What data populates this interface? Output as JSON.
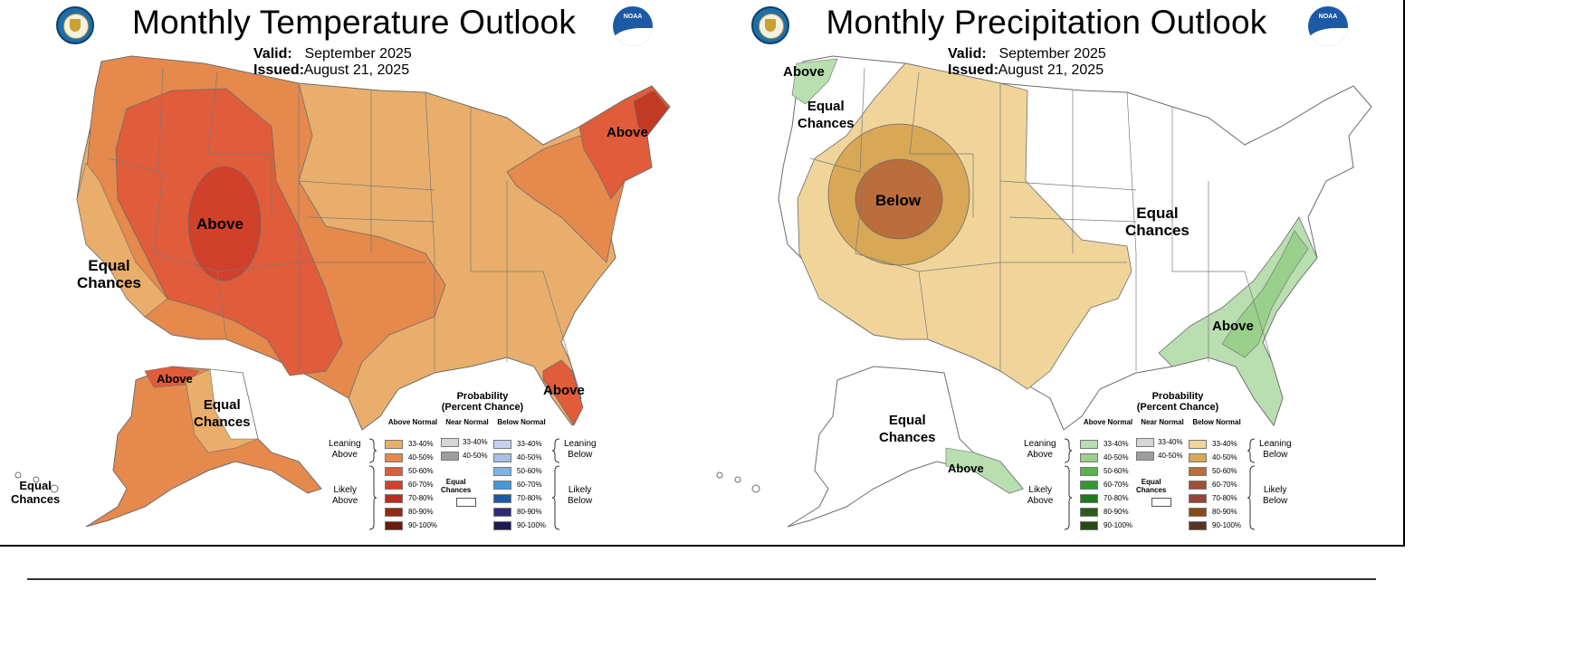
{
  "temperature": {
    "title": "Monthly Temperature Outlook",
    "valid_label": "Valid:",
    "valid_value": "September 2025",
    "issued_label": "Issued:",
    "issued_value": "August 21, 2025",
    "map_labels": {
      "above_west": "Above",
      "above_northeast": "Above",
      "above_florida": "Above",
      "above_alaska": "Above",
      "equal_chances_ca_1": "Equal",
      "equal_chances_ca_2": "Chances",
      "equal_chances_ak_1": "Equal",
      "equal_chances_ak_2": "Chances",
      "equal_chances_hi_1": "Equal",
      "equal_chances_hi_2": "Chances"
    }
  },
  "precipitation": {
    "title": "Monthly Precipitation Outlook",
    "valid_label": "Valid:",
    "valid_value": "September 2025",
    "issued_label": "Issued:",
    "issued_value": "August 21, 2025",
    "map_labels": {
      "above_pnw": "Above",
      "equal_chances_nw_1": "Equal",
      "equal_chances_nw_2": "Chances",
      "below_center": "Below",
      "equal_chances_east_1": "Equal",
      "equal_chances_east_2": "Chances",
      "above_southeast": "Above",
      "equal_chances_ak_1": "Equal",
      "equal_chances_ak_2": "Chances",
      "above_ak_panhandle": "Above"
    }
  },
  "legend": {
    "title_1": "Probability",
    "title_2": "(Percent Chance)",
    "col_above": "Above Normal",
    "col_near": "Near Normal",
    "col_below": "Below Normal",
    "leaning_above_1": "Leaning",
    "leaning_above_2": "Above",
    "likely_above_1": "Likely",
    "likely_above_2": "Above",
    "leaning_below_1": "Leaning",
    "leaning_below_2": "Below",
    "likely_below_1": "Likely",
    "likely_below_2": "Below",
    "equal_1": "Equal",
    "equal_2": "Chances",
    "levels": [
      "33-40%",
      "40-50%",
      "50-60%",
      "60-70%",
      "70-80%",
      "80-90%",
      "90-100%"
    ],
    "near_levels": [
      "33-40%",
      "40-50%"
    ],
    "temp_above_colors": [
      "#e9ae6b",
      "#e5894c",
      "#e05c3a",
      "#d0402a",
      "#b82e1f",
      "#922a14",
      "#6b1d0c"
    ],
    "temp_below_colors": [
      "#c6d2ec",
      "#a7c0e6",
      "#7fb2e5",
      "#3e9bd8",
      "#1b5aa6",
      "#2e2a7a",
      "#1f1a4f"
    ],
    "precip_above_colors": [
      "#b9deb0",
      "#99d08c",
      "#59b54a",
      "#2f9b2b",
      "#1b7a1b",
      "#2e5a1d",
      "#254a14"
    ],
    "precip_below_colors": [
      "#f0d49a",
      "#d8a857",
      "#bb6d3c",
      "#a24e33",
      "#934638",
      "#8a4a16",
      "#5a3326"
    ],
    "near_colors": [
      "#d6d6d6",
      "#9e9e9e"
    ]
  }
}
